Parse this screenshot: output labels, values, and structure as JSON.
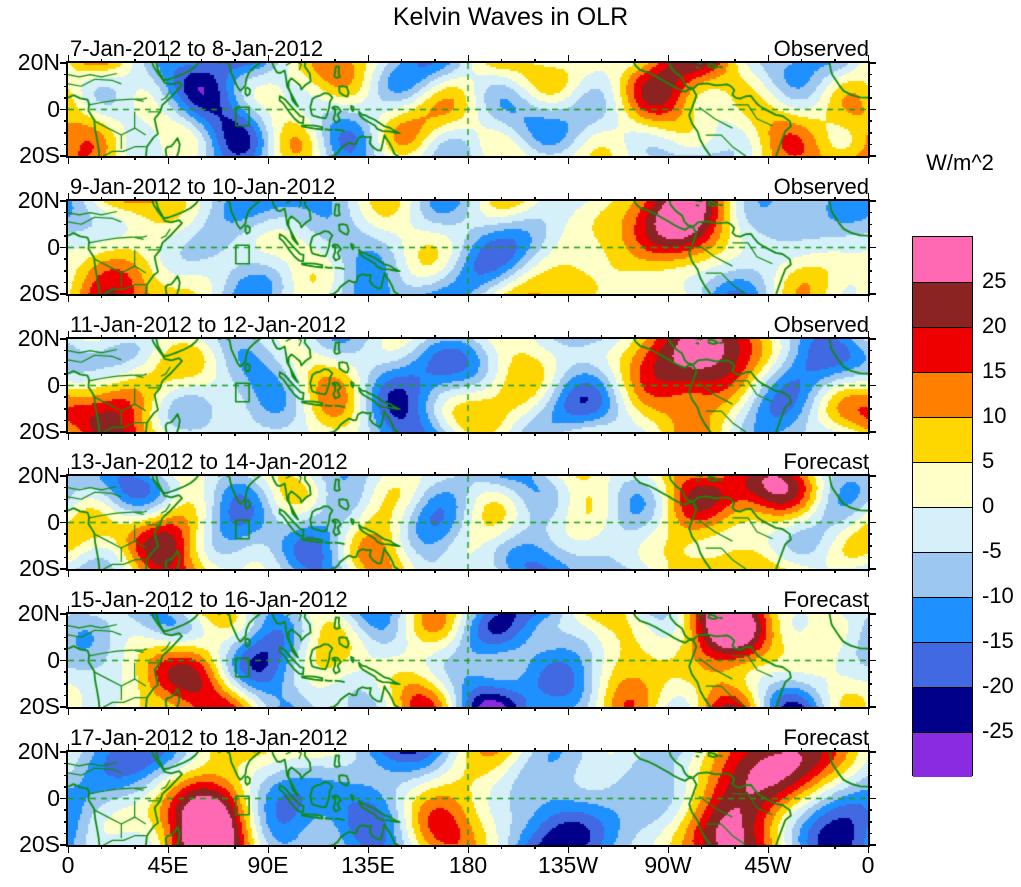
{
  "title": "Kelvin Waves in OLR",
  "panels": [
    {
      "date_range": "7-Jan-2012 to 8-Jan-2012",
      "mode": "Observed"
    },
    {
      "date_range": "9-Jan-2012 to 10-Jan-2012",
      "mode": "Observed"
    },
    {
      "date_range": "11-Jan-2012 to 12-Jan-2012",
      "mode": "Observed"
    },
    {
      "date_range": "13-Jan-2012 to 14-Jan-2012",
      "mode": "Forecast"
    },
    {
      "date_range": "15-Jan-2012 to 16-Jan-2012",
      "mode": "Forecast"
    },
    {
      "date_range": "17-Jan-2012 to 18-Jan-2012",
      "mode": "Forecast"
    }
  ],
  "x_axis": {
    "tick_labels": [
      "0",
      "45E",
      "90E",
      "135E",
      "180",
      "135W",
      "90W",
      "45W",
      "0"
    ]
  },
  "y_axis": {
    "tick_labels": [
      "20N",
      "0",
      "20S"
    ]
  },
  "colorbar": {
    "unit_label": "W/m^2",
    "tick_labels": [
      "25",
      "20",
      "15",
      "10",
      "5",
      "0",
      "-5",
      "-10",
      "-15",
      "-20",
      "-25"
    ],
    "colors_bottom_to_top": [
      "#8A2BE2",
      "#00008B",
      "#4169E1",
      "#1E90FF",
      "#9CC7F0",
      "#D6F0FA",
      "#FFFFC8",
      "#FFD700",
      "#FF7F00",
      "#EE0000",
      "#8B2323",
      "#FF69B4"
    ]
  },
  "map_style": {
    "coast_color": "#0E8C0E",
    "reference_line_color": "#15A015",
    "frame_color": "#000000"
  },
  "chart_data": {
    "type": "heatmap",
    "title": "Kelvin Waves in OLR",
    "unit": "W/m^2",
    "description": "Six filled-contour longitude-latitude maps of Kelvin-wave-filtered OLR anomalies over the tropical band, three observed and three forecast two-day periods; green coastlines/borders, dashed green equator and 180-degree reference lines, shared discrete colorbar.",
    "panels": [
      {
        "date_range": "7-Jan-2012 to 8-Jan-2012",
        "mode": "Observed"
      },
      {
        "date_range": "9-Jan-2012 to 10-Jan-2012",
        "mode": "Observed"
      },
      {
        "date_range": "11-Jan-2012 to 12-Jan-2012",
        "mode": "Observed"
      },
      {
        "date_range": "13-Jan-2012 to 14-Jan-2012",
        "mode": "Forecast"
      },
      {
        "date_range": "15-Jan-2012 to 16-Jan-2012",
        "mode": "Forecast"
      },
      {
        "date_range": "17-Jan-2012 to 18-Jan-2012",
        "mode": "Forecast"
      }
    ],
    "x": {
      "label": "longitude",
      "range_deg_east": [
        0,
        360
      ],
      "tick_labels": [
        "0",
        "45E",
        "90E",
        "135E",
        "180",
        "135W",
        "90W",
        "45W",
        "0"
      ],
      "tick_lons_deg_east": [
        0,
        45,
        90,
        135,
        180,
        225,
        270,
        315,
        360
      ]
    },
    "y": {
      "label": "latitude",
      "range_deg": [
        -20,
        20
      ],
      "tick_labels": [
        "20N",
        "0",
        "20S"
      ],
      "tick_lats_deg": [
        20,
        0,
        -20
      ]
    },
    "contour_levels": [
      -25,
      -20,
      -15,
      -10,
      -5,
      0,
      5,
      10,
      15,
      20,
      25
    ],
    "contour_interval": 5,
    "contour_colors_low_to_high": [
      "#8A2BE2",
      "#00008B",
      "#4169E1",
      "#1E90FF",
      "#9CC7F0",
      "#D6F0FA",
      "#FFFFC8",
      "#FFD700",
      "#FF7F00",
      "#EE0000",
      "#8B2323",
      "#FF69B4"
    ],
    "colorbar_tick_labels_top_to_bottom": [
      "25",
      "20",
      "15",
      "10",
      "5",
      "0",
      "-5",
      "-10",
      "-15",
      "-20",
      "-25"
    ],
    "reference_lines": [
      "equator (lat 0, dashed green)",
      "dateline (lon 180, dashed green)",
      "index box near 76E-81E, 7S-1N (green outline)"
    ],
    "legend_position": "right",
    "grid": false
  }
}
